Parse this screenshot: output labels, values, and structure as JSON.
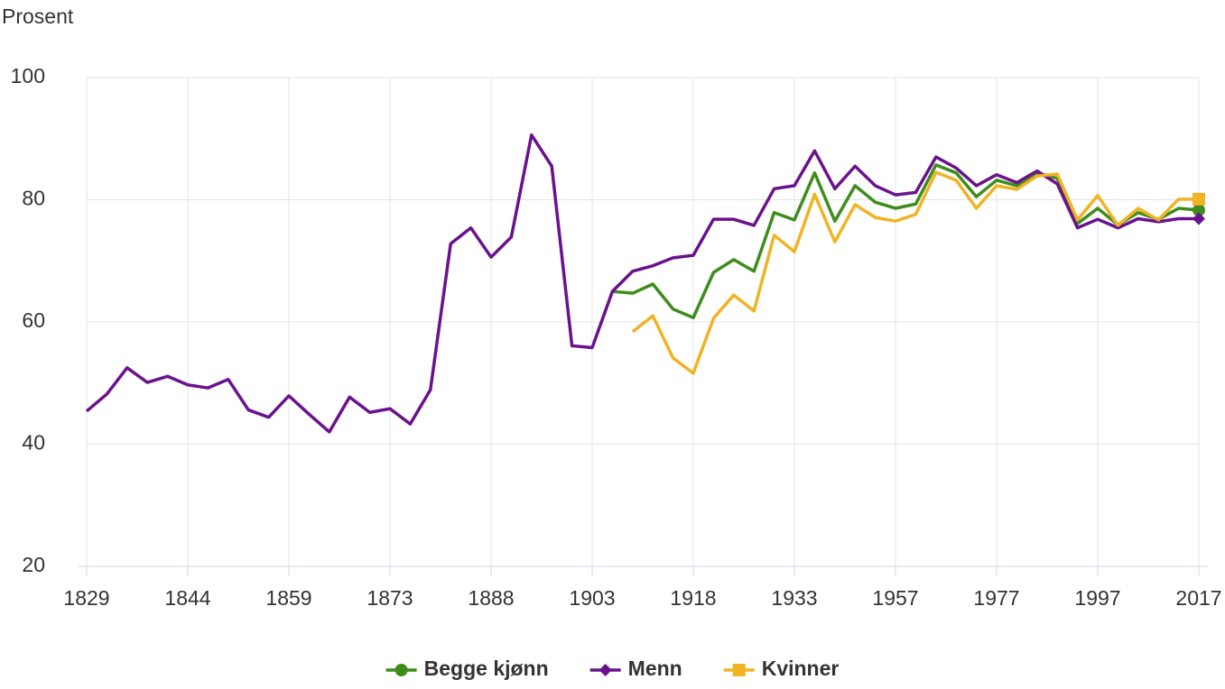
{
  "chart_data": {
    "type": "line",
    "y_axis_label": "Prosent",
    "categories": [
      "1829",
      null,
      null,
      null,
      null,
      "1844",
      null,
      null,
      null,
      null,
      "1859",
      null,
      null,
      null,
      null,
      "1873",
      null,
      null,
      null,
      null,
      "1888",
      null,
      null,
      null,
      null,
      "1903",
      null,
      null,
      null,
      null,
      "1918",
      null,
      null,
      null,
      null,
      "1933",
      null,
      null,
      null,
      null,
      "1957",
      null,
      null,
      null,
      null,
      "1977",
      null,
      null,
      null,
      null,
      "1997",
      null,
      null,
      null,
      null,
      "2017"
    ],
    "series": [
      {
        "name": "Begge kjønn",
        "color": "#3f8c1d",
        "marker": "circle",
        "values": [
          null,
          null,
          null,
          null,
          null,
          null,
          null,
          null,
          null,
          null,
          null,
          null,
          null,
          null,
          null,
          null,
          null,
          null,
          null,
          null,
          null,
          null,
          null,
          null,
          null,
          null,
          65.0,
          64.7,
          66.2,
          62.1,
          60.7,
          68.1,
          70.2,
          68.3,
          77.9,
          76.7,
          84.4,
          76.5,
          82.3,
          79.6,
          78.6,
          79.3,
          85.7,
          84.4,
          80.5,
          83.2,
          82.3,
          84.4,
          83.5,
          76.1,
          78.6,
          75.9,
          77.9,
          76.8,
          78.6,
          78.3
        ]
      },
      {
        "name": "Menn",
        "color": "#6a128e",
        "marker": "diamond",
        "values": [
          45.4,
          48.2,
          52.5,
          50.1,
          51.1,
          49.7,
          49.2,
          50.6,
          45.6,
          44.4,
          47.9,
          44.9,
          42.0,
          47.7,
          45.2,
          45.8,
          43.3,
          48.9,
          72.8,
          75.4,
          70.6,
          73.9,
          90.6,
          85.5,
          56.1,
          55.8,
          65.0,
          68.3,
          69.2,
          70.5,
          70.9,
          76.8,
          76.8,
          75.8,
          81.8,
          82.3,
          88.0,
          81.8,
          85.5,
          82.3,
          80.8,
          81.2,
          87.0,
          85.2,
          82.3,
          84.1,
          82.8,
          84.7,
          82.6,
          75.4,
          76.8,
          75.4,
          76.9,
          76.4,
          76.9,
          76.9
        ]
      },
      {
        "name": "Kvinner",
        "color": "#f0b323",
        "marker": "square",
        "values": [
          null,
          null,
          null,
          null,
          null,
          null,
          null,
          null,
          null,
          null,
          null,
          null,
          null,
          null,
          null,
          null,
          null,
          null,
          null,
          null,
          null,
          null,
          null,
          null,
          null,
          null,
          null,
          58.4,
          61.0,
          54.1,
          51.6,
          60.6,
          64.4,
          61.8,
          74.2,
          71.5,
          80.9,
          73.1,
          79.2,
          77.1,
          76.5,
          77.6,
          84.5,
          83.2,
          78.6,
          82.3,
          81.7,
          83.9,
          84.2,
          76.7,
          80.7,
          75.8,
          78.6,
          76.7,
          80.1,
          80.1
        ]
      }
    ],
    "ylim": [
      20,
      100
    ],
    "yticks": [
      20,
      40,
      60,
      80,
      100
    ],
    "grid": true,
    "legend": "bottom"
  }
}
